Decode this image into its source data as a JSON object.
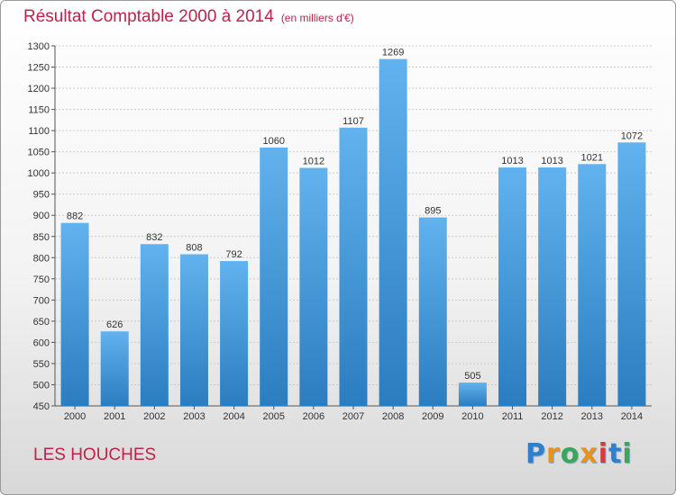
{
  "page": {
    "title": "Résultat Comptable 2000 à 2014",
    "unit_note": "(en milliers d'€)",
    "city": "LES HOUCHES",
    "logo": {
      "text": "Proxiti",
      "letters": [
        "P",
        "r",
        "o",
        "x",
        "i",
        "t",
        "i"
      ],
      "letter_colors": [
        "#2f7fcb",
        "#e8911c",
        "#3aa657",
        "#e8911c",
        "#d63b3b",
        "#2f7fcb",
        "#3aa657"
      ]
    },
    "colors": {
      "title": "#c0224a",
      "bar_light": "#62b2ee",
      "bar_dark": "#2a7dbf",
      "grid": "#cccccc",
      "axis": "#555555",
      "label": "#333333"
    }
  },
  "chart_data": {
    "type": "bar",
    "title": "Résultat Comptable 2000 à 2014",
    "subtitle": "(en milliers d'€)",
    "xlabel": "",
    "ylabel": "",
    "categories": [
      "2000",
      "2001",
      "2002",
      "2003",
      "2004",
      "2005",
      "2006",
      "2007",
      "2008",
      "2009",
      "2010",
      "2011",
      "2012",
      "2013",
      "2014"
    ],
    "values": [
      882,
      626,
      832,
      808,
      792,
      1060,
      1012,
      1107,
      1269,
      895,
      505,
      1013,
      1013,
      1021,
      1072
    ],
    "data_labels": [
      "882",
      "626",
      "832",
      "808",
      "792",
      "1060",
      "1012",
      "1107",
      "1269",
      "895",
      "505",
      "1013",
      "1013",
      "1021",
      "1072"
    ],
    "ylim": [
      450,
      1300
    ],
    "y_ticks": [
      450,
      500,
      550,
      600,
      650,
      700,
      750,
      800,
      850,
      900,
      950,
      1000,
      1050,
      1100,
      1150,
      1200,
      1250,
      1300
    ],
    "grid": true,
    "legend": "none"
  }
}
